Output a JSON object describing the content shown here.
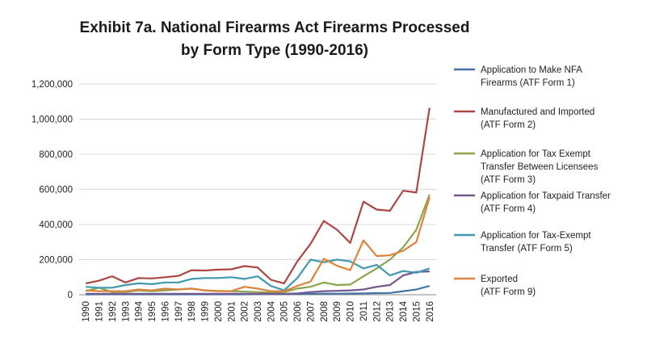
{
  "chart_data": {
    "type": "line",
    "title": "Exhibit 7a. National Firearms Act Firearms Processed",
    "subtitle": "by Form Type  (1990-2016)",
    "xlabel": "",
    "ylabel": "",
    "ylim": [
      0,
      1200000
    ],
    "y_ticks": [
      0,
      200000,
      400000,
      600000,
      800000,
      1000000,
      1200000
    ],
    "y_tick_labels": [
      "0",
      "200,000",
      "400,000",
      "600,000",
      "800,000",
      "1,000,000",
      "1,200,000"
    ],
    "grid": "horizontal",
    "legend_position": "right",
    "categories": [
      "1990",
      "1991",
      "1992",
      "1993",
      "1994",
      "1995",
      "1996",
      "1997",
      "1998",
      "1999",
      "2000",
      "2001",
      "2002",
      "2003",
      "2004",
      "2005",
      "2006",
      "2007",
      "2008",
      "2009",
      "2010",
      "2011",
      "2012",
      "2013",
      "2014",
      "2015",
      "2016"
    ],
    "series": [
      {
        "name_lines": [
          "Application to Make NFA",
          "Firearms (ATF Form 1)"
        ],
        "color": "#4572A7",
        "values": [
          2000,
          2500,
          2500,
          2500,
          2500,
          2500,
          2500,
          2500,
          2500,
          2500,
          2500,
          2500,
          2500,
          3000,
          3000,
          3500,
          4000,
          5000,
          6000,
          6000,
          7000,
          8000,
          9000,
          10000,
          20000,
          30000,
          50000
        ]
      },
      {
        "name_lines": [
          "Manufactured and Imported",
          "(ATF Form 2)"
        ],
        "color": "#AA4643",
        "values": [
          65000,
          80000,
          105000,
          70000,
          95000,
          93000,
          100000,
          107000,
          140000,
          138000,
          143000,
          145000,
          163000,
          155000,
          85000,
          65000,
          190000,
          290000,
          420000,
          370000,
          295000,
          530000,
          485000,
          478000,
          592000,
          582000,
          1065000
        ]
      },
      {
        "name_lines": [
          "Application for Tax Exempt",
          "Transfer Between Licensees",
          "(ATF Form 3)"
        ],
        "color": "#89A54E",
        "values": [
          20000,
          40000,
          15000,
          15000,
          25000,
          20000,
          25000,
          30000,
          35000,
          25000,
          22000,
          20000,
          18000,
          15000,
          12000,
          15000,
          35000,
          45000,
          70000,
          55000,
          58000,
          105000,
          150000,
          200000,
          270000,
          370000,
          570000
        ]
      },
      {
        "name_lines": [
          "Application for Taxpaid Transfer",
          "(ATF Form 4)"
        ],
        "color": "#71588F",
        "values": [
          5000,
          5000,
          5000,
          5000,
          5000,
          5000,
          5000,
          5000,
          5000,
          5000,
          5000,
          5000,
          5000,
          5000,
          5000,
          5000,
          8000,
          15000,
          20000,
          22000,
          25000,
          30000,
          45000,
          55000,
          110000,
          130000,
          133000
        ]
      },
      {
        "name_lines": [
          "Application for Tax-Exempt",
          "Transfer (ATF Form 5)"
        ],
        "color": "#4198AF",
        "values": [
          45000,
          40000,
          40000,
          55000,
          65000,
          60000,
          70000,
          70000,
          90000,
          95000,
          95000,
          100000,
          90000,
          105000,
          50000,
          25000,
          95000,
          200000,
          185000,
          200000,
          190000,
          150000,
          170000,
          110000,
          135000,
          125000,
          150000
        ]
      },
      {
        "name_lines": [
          "Exported",
          "(ATF Form 9)"
        ],
        "color": "#DB843D",
        "values": [
          25000,
          20000,
          20000,
          20000,
          30000,
          25000,
          35000,
          30000,
          35000,
          25000,
          20000,
          20000,
          45000,
          35000,
          20000,
          20000,
          50000,
          75000,
          205000,
          165000,
          140000,
          310000,
          220000,
          225000,
          250000,
          300000,
          555000
        ]
      }
    ]
  }
}
